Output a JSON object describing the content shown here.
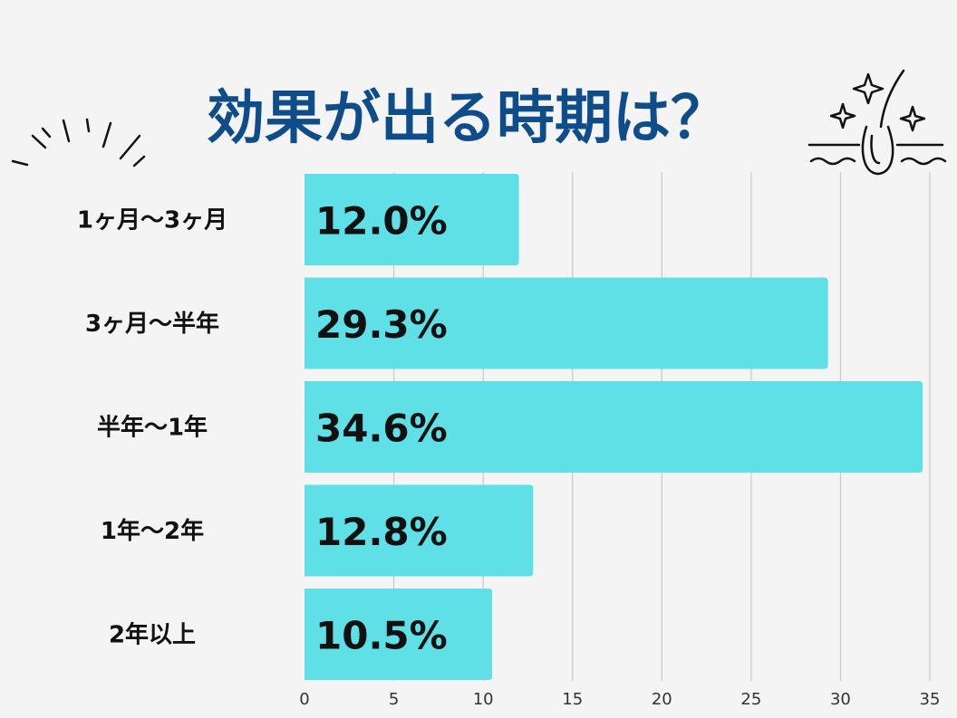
{
  "title": "効果が出る時期は？",
  "icons": {
    "left_decoration": "sparkle-lines-icon",
    "right_decoration": "hair-follicle-sparkle-icon"
  },
  "colors": {
    "bar": "#5ee0e6",
    "title": "#0f4d8a",
    "grid": "#c8c8c8",
    "background": "#f4f4f4",
    "text": "#111111"
  },
  "chart_data": {
    "type": "bar",
    "orientation": "horizontal",
    "categories": [
      "1ヶ月〜3ヶ月",
      "3ヶ月〜半年",
      "半年〜1年",
      "1年〜2年",
      "2年以上"
    ],
    "values": [
      12.0,
      29.3,
      34.6,
      12.8,
      10.5
    ],
    "value_labels": [
      "12.0%",
      "29.3%",
      "34.6%",
      "12.8%",
      "10.5%"
    ],
    "xlim": [
      0,
      35
    ],
    "xticks": [
      0,
      5,
      10,
      15,
      20,
      25,
      30,
      35
    ],
    "grid": "vertical",
    "legend": "none"
  }
}
